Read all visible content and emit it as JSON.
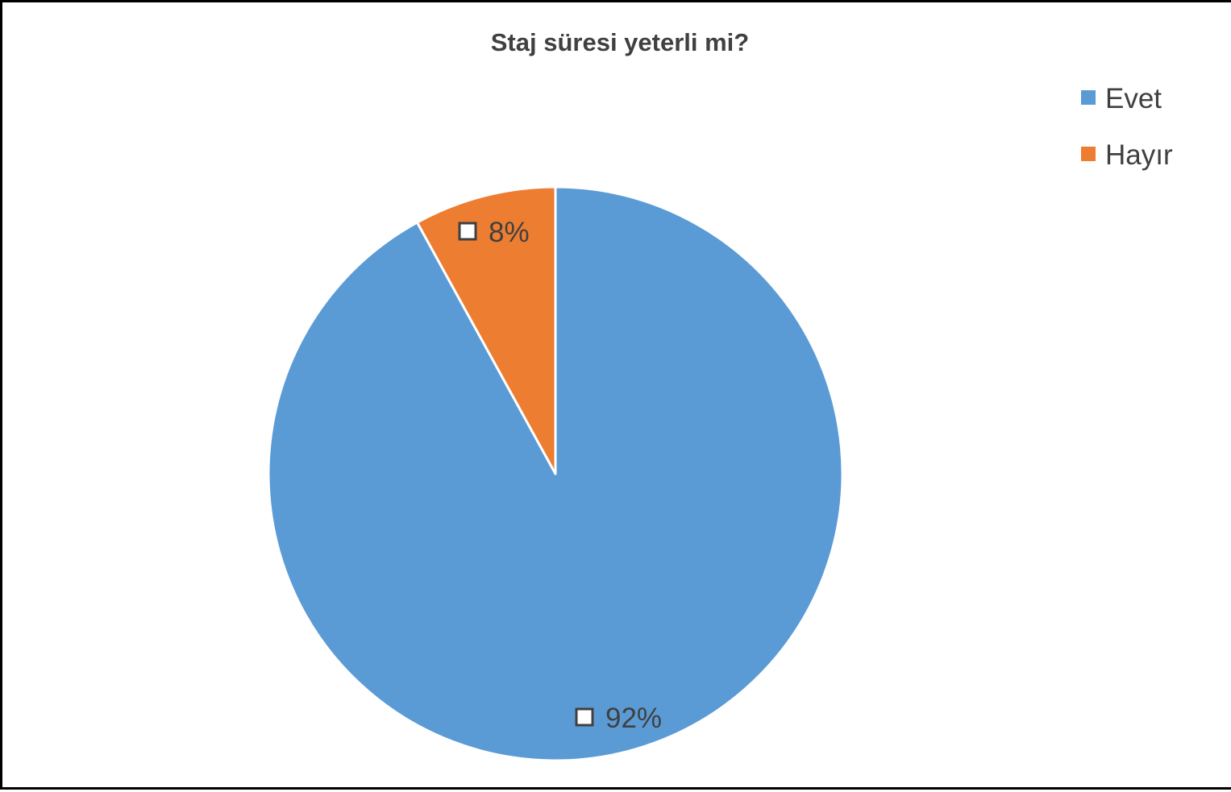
{
  "chart_data": {
    "type": "pie",
    "title": "Staj süresi yeterli mi?",
    "categories": [
      "Evet",
      "Hayır"
    ],
    "values": [
      92,
      8
    ],
    "data_labels": [
      "92%",
      "8%"
    ],
    "colors": [
      "#5B9BD5",
      "#ED7D31"
    ],
    "legend_position": "top-right",
    "start_angle_deg": 0,
    "direction": "clockwise"
  }
}
